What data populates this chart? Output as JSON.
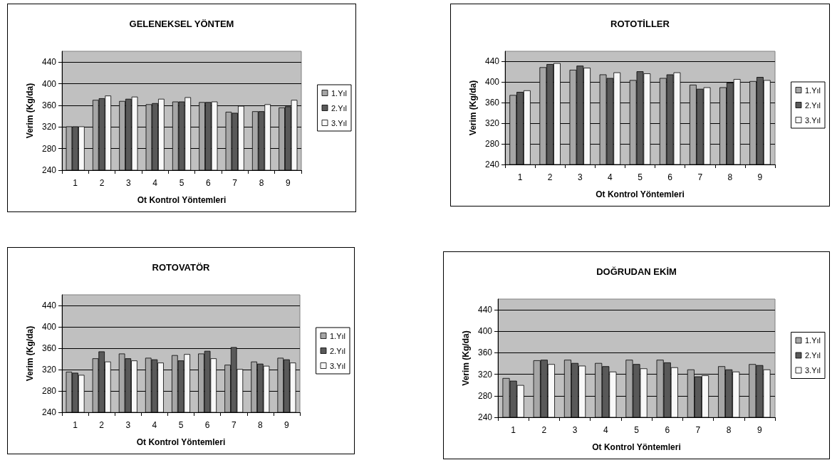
{
  "chart_data": [
    {
      "type": "bar",
      "title": "GELENEKSEL YÖNTEM",
      "xlabel": "Ot Kontrol Yöntemleri",
      "ylabel": "Verim (Kg/da)",
      "categories": [
        "1",
        "2",
        "3",
        "4",
        "5",
        "6",
        "7",
        "8",
        "9"
      ],
      "ylim": [
        240,
        460
      ],
      "yticks": [
        240,
        280,
        320,
        360,
        400,
        440
      ],
      "grid": "y",
      "legend": "right",
      "series": [
        {
          "name": "1.Yıl",
          "color": "#a6a6a6",
          "values": [
            321,
            370,
            368,
            362,
            367,
            366,
            348,
            349,
            356
          ]
        },
        {
          "name": "2.Yıl",
          "color": "#595959",
          "values": [
            321,
            373,
            372,
            364,
            367,
            366,
            346,
            349,
            358
          ]
        },
        {
          "name": "3.Yıl",
          "color": "#f8f8f8",
          "values": [
            321,
            378,
            376,
            372,
            375,
            367,
            359,
            362,
            370
          ]
        }
      ]
    },
    {
      "type": "bar",
      "title": "ROTOTİLLER",
      "xlabel": "Ot Kontrol Yöntemleri",
      "ylabel": "Verim (Kg/da)",
      "categories": [
        "1",
        "2",
        "3",
        "4",
        "5",
        "6",
        "7",
        "8",
        "9"
      ],
      "ylim": [
        240,
        460
      ],
      "yticks": [
        240,
        280,
        320,
        360,
        400,
        440
      ],
      "grid": "y",
      "legend": "right",
      "series": [
        {
          "name": "1.Yıl",
          "color": "#a6a6a6",
          "values": [
            375,
            429,
            424,
            415,
            404,
            408,
            395,
            390,
            402
          ]
        },
        {
          "name": "2.Yıl",
          "color": "#595959",
          "values": [
            381,
            435,
            432,
            408,
            421,
            415,
            387,
            399,
            410
          ]
        },
        {
          "name": "3.Yıl",
          "color": "#f8f8f8",
          "values": [
            384,
            437,
            428,
            419,
            417,
            419,
            390,
            406,
            404
          ]
        }
      ]
    },
    {
      "type": "bar",
      "title": "ROTOVATÖR",
      "xlabel": "Ot Kontrol Yöntemleri",
      "ylabel": "Verim (Kg/da)",
      "categories": [
        "1",
        "2",
        "3",
        "4",
        "5",
        "6",
        "7",
        "8",
        "9"
      ],
      "ylim": [
        240,
        460
      ],
      "yticks": [
        240,
        280,
        320,
        360,
        400,
        440
      ],
      "grid": "y",
      "legend": "right",
      "series": [
        {
          "name": "1.Yıl",
          "color": "#a6a6a6",
          "values": [
            316,
            341,
            350,
            342,
            347,
            350,
            329,
            335,
            342
          ]
        },
        {
          "name": "2.Yıl",
          "color": "#595959",
          "values": [
            314,
            354,
            341,
            339,
            337,
            355,
            362,
            331,
            339
          ]
        },
        {
          "name": "3.Yıl",
          "color": "#f8f8f8",
          "values": [
            310,
            335,
            337,
            333,
            349,
            341,
            321,
            327,
            333
          ]
        }
      ]
    },
    {
      "type": "bar",
      "title": "DOĞRUDAN EKİM",
      "xlabel": "Ot Kontrol Yöntemleri",
      "ylabel": "Verim (Kg/da)",
      "categories": [
        "1",
        "2",
        "3",
        "4",
        "5",
        "6",
        "7",
        "8",
        "9"
      ],
      "ylim": [
        240,
        460
      ],
      "yticks": [
        240,
        280,
        320,
        360,
        400,
        440
      ],
      "grid": "y",
      "legend": "right",
      "series": [
        {
          "name": "1.Yıl",
          "color": "#a6a6a6",
          "values": [
            313,
            346,
            347,
            341,
            347,
            347,
            329,
            335,
            339
          ]
        },
        {
          "name": "2.Yıl",
          "color": "#595959",
          "values": [
            308,
            347,
            341,
            335,
            339,
            342,
            316,
            329,
            337
          ]
        },
        {
          "name": "3.Yıl",
          "color": "#f8f8f8",
          "values": [
            300,
            339,
            336,
            325,
            331,
            333,
            318,
            325,
            329
          ]
        }
      ]
    }
  ]
}
